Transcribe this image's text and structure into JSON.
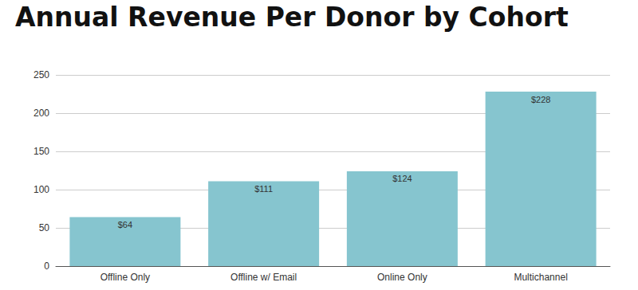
{
  "chart_data": {
    "type": "bar",
    "title": "Annual Revenue Per Donor by Cohort",
    "categories": [
      "Offline Only",
      "Offline w/ Email",
      "Online Only",
      "Multichannel"
    ],
    "values": [
      64,
      111,
      124,
      228
    ],
    "value_labels": [
      "$64",
      "$111",
      "$124",
      "$228"
    ],
    "color": "#86c5cf",
    "ylim": [
      0,
      250
    ],
    "yticks": [
      0,
      50,
      100,
      150,
      200,
      250
    ],
    "grid": true,
    "data_labels": true
  }
}
